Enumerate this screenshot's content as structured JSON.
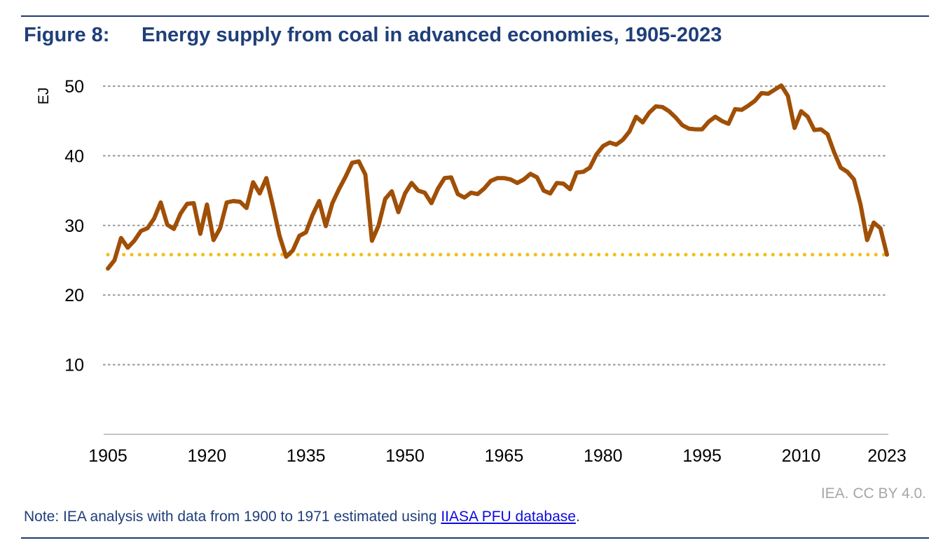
{
  "figure": {
    "label": "Figure 8:",
    "title": "Energy supply from coal in advanced economies, 1905-2023"
  },
  "credit": "IEA. CC BY 4.0.",
  "note": {
    "prefix": "Note: IEA analysis with data from 1900 to 1971 estimated using ",
    "link_text": "IIASA PFU database",
    "suffix": "."
  },
  "colors": {
    "series": "#a04f07",
    "reference": "#f2be1d",
    "grid": "#9a9a9a",
    "title": "#1f3f7a"
  },
  "chart_data": {
    "type": "line",
    "ylabel": "EJ",
    "xlabel": "",
    "xlim": [
      1905,
      2023
    ],
    "ylim": [
      0,
      50
    ],
    "yticks": [
      10,
      20,
      30,
      40,
      50
    ],
    "xticks": [
      "1905",
      "1920",
      "1935",
      "1950",
      "1965",
      "1980",
      "1995",
      "2010",
      "2023"
    ],
    "grid": "horizontal-dotted",
    "reference_line": {
      "y": 25.8,
      "style": "dotted"
    },
    "series": [
      {
        "x": [
          1905,
          1906,
          1907,
          1908,
          1909,
          1910,
          1911,
          1912,
          1913,
          1914,
          1915,
          1916,
          1917,
          1918,
          1919,
          1920,
          1921,
          1922,
          1923,
          1924,
          1925,
          1926,
          1927,
          1928,
          1929,
          1930,
          1931,
          1932,
          1933,
          1934,
          1935,
          1936,
          1937,
          1938,
          1939,
          1940,
          1941,
          1942,
          1943,
          1944,
          1945,
          1946,
          1947,
          1948,
          1949,
          1950,
          1951,
          1952,
          1953,
          1954,
          1955,
          1956,
          1957,
          1958,
          1959,
          1960,
          1961,
          1962,
          1963,
          1964,
          1965,
          1966,
          1967,
          1968,
          1969,
          1970,
          1971,
          1972,
          1973,
          1974,
          1975,
          1976,
          1977,
          1978,
          1979,
          1980,
          1981,
          1982,
          1983,
          1984,
          1985,
          1986,
          1987,
          1988,
          1989,
          1990,
          1991,
          1992,
          1993,
          1994,
          1995,
          1996,
          1997,
          1998,
          1999,
          2000,
          2001,
          2002,
          2003,
          2004,
          2005,
          2006,
          2007,
          2008,
          2009,
          2010,
          2011,
          2012,
          2013,
          2014,
          2015,
          2016,
          2017,
          2018,
          2019,
          2020,
          2021,
          2022,
          2023
        ],
        "values": [
          23.8,
          25,
          28.2,
          26.8,
          27.8,
          29.2,
          29.6,
          31,
          33.3,
          30.1,
          29.5,
          31.7,
          33.1,
          33.2,
          28.8,
          33,
          27.9,
          29.6,
          33.3,
          33.5,
          33.4,
          32.5,
          36.2,
          34.6,
          36.8,
          32.8,
          28.5,
          25.5,
          26.4,
          28.5,
          29,
          31.5,
          33.5,
          29.9,
          33.2,
          35.2,
          37,
          39,
          39.2,
          37.3,
          27.8,
          30,
          33.8,
          34.9,
          31.9,
          34.6,
          36.1,
          35,
          34.7,
          33.2,
          35.3,
          36.8,
          36.9,
          34.5,
          34,
          34.7,
          34.5,
          35.3,
          36.4,
          36.8,
          36.8,
          36.6,
          36.1,
          36.6,
          37.4,
          36.9,
          35,
          34.6,
          36.1,
          36,
          35.2,
          37.6,
          37.7,
          38.3,
          40.2,
          41.4,
          41.9,
          41.6,
          42.3,
          43.5,
          45.6,
          44.8,
          46.2,
          47.1,
          47,
          46.4,
          45.5,
          44.4,
          43.9,
          43.8,
          43.8,
          44.9,
          45.6,
          45,
          44.6,
          46.7,
          46.6,
          47.2,
          47.9,
          49,
          48.9,
          49.5,
          50.1,
          48.6,
          44,
          46.4,
          45.6,
          43.7,
          43.8,
          43.1,
          40.5,
          38.3,
          37.7,
          36.6,
          33,
          27.9,
          30.4,
          29.6,
          25.8
        ]
      }
    ]
  }
}
